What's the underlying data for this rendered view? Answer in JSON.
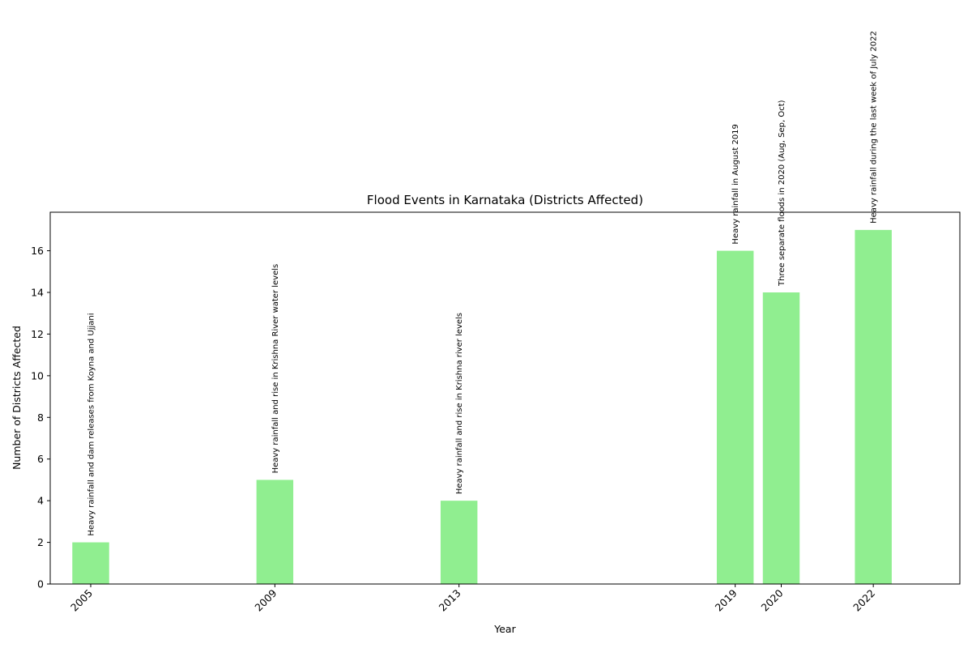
{
  "chart_data": {
    "type": "bar",
    "title": "Flood Events in Karnataka (Districts Affected)",
    "xlabel": "Year",
    "ylabel": "Number of Districts Affected",
    "categories": [
      "2005",
      "2009",
      "2013",
      "2019",
      "2020",
      "2022"
    ],
    "x": [
      2005,
      2009,
      2013,
      2019,
      2020,
      2022
    ],
    "values": [
      2,
      5,
      4,
      16,
      14,
      17
    ],
    "annotations": [
      "Heavy rainfall and dam releases from Koyna and Ujjani",
      "Heavy rainfall and rise in Krishna River water levels",
      "Heavy rainfall and rise in Krishna river levels",
      "Heavy rainfall in August 2019",
      "Three separate floods in 2020 (Aug, Sep, Oct)",
      "Heavy rainfall during the last week of July 2022"
    ],
    "yticks": [
      0,
      2,
      4,
      6,
      8,
      10,
      12,
      14,
      16
    ],
    "xlim": [
      2004.12,
      2023.88
    ],
    "ylim": [
      0,
      17.85
    ],
    "bar_color": "#90ee90",
    "grid": false,
    "legend": "none"
  }
}
